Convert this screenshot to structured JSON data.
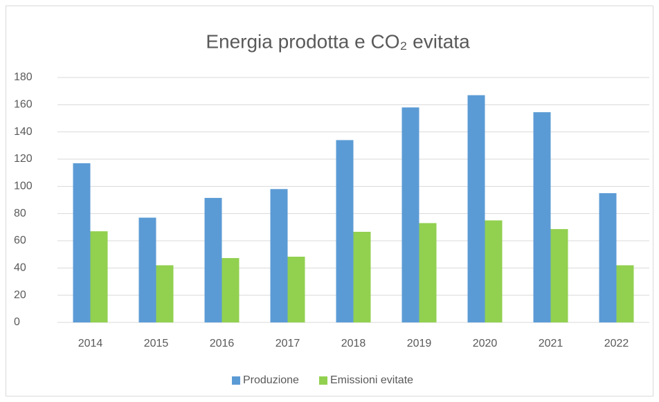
{
  "chart_data": {
    "type": "bar",
    "title": "Energia prodotta e CO₂ evitata",
    "categories": [
      "2014",
      "2015",
      "2016",
      "2017",
      "2018",
      "2019",
      "2020",
      "2021",
      "2022"
    ],
    "series": [
      {
        "name": "Produzione",
        "color": "#5b9bd5",
        "values": [
          117,
          77,
          91.5,
          98,
          134,
          158,
          167,
          154.5,
          95
        ]
      },
      {
        "name": "Emissioni evitate",
        "color": "#92d050",
        "values": [
          67,
          42,
          47.3,
          48.3,
          66.6,
          73,
          75,
          68.6,
          42
        ]
      }
    ],
    "ylim": [
      0,
      180
    ],
    "yticks": [
      0,
      20,
      40,
      60,
      80,
      100,
      120,
      140,
      160,
      180
    ],
    "grid": true,
    "legend": "bottom"
  }
}
